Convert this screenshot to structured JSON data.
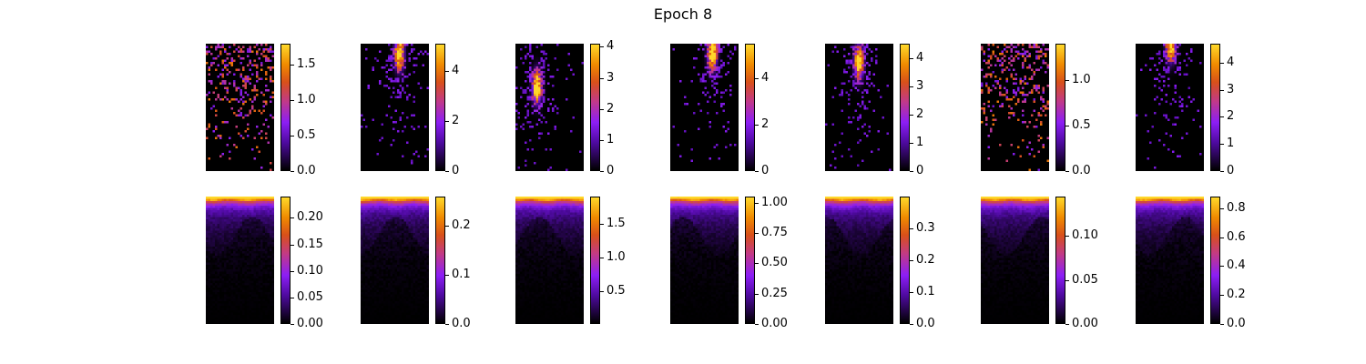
{
  "title": "Epoch 8",
  "colormap": "gnuplot",
  "chart_data": [
    {
      "type": "heatmap",
      "row": 1,
      "col": 1,
      "colorbar_ticks": [
        "0.0",
        "0.5",
        "1.0",
        "1.5"
      ],
      "tick_values": [
        0,
        0.5,
        1.0,
        1.5
      ],
      "vmin": 0,
      "vmax": 1.8,
      "pattern": "sparse-top"
    },
    {
      "type": "heatmap",
      "row": 1,
      "col": 2,
      "colorbar_ticks": [
        "0",
        "2",
        "4"
      ],
      "tick_values": [
        0,
        2,
        4
      ],
      "vmin": 0,
      "vmax": 5.1,
      "pattern": "blob",
      "peak_at": [
        0.55,
        0.07
      ]
    },
    {
      "type": "heatmap",
      "row": 1,
      "col": 3,
      "colorbar_ticks": [
        "0",
        "1",
        "2",
        "3",
        "4"
      ],
      "tick_values": [
        0,
        1,
        2,
        3,
        4
      ],
      "vmin": 0,
      "vmax": 4.1,
      "pattern": "blob",
      "peak_at": [
        0.3,
        0.33
      ]
    },
    {
      "type": "heatmap",
      "row": 1,
      "col": 4,
      "colorbar_ticks": [
        "0",
        "2",
        "4"
      ],
      "tick_values": [
        0,
        2,
        4
      ],
      "vmin": 0,
      "vmax": 5.5,
      "pattern": "blob",
      "peak_at": [
        0.6,
        0.07
      ]
    },
    {
      "type": "heatmap",
      "row": 1,
      "col": 5,
      "colorbar_ticks": [
        "0",
        "1",
        "2",
        "3",
        "4"
      ],
      "tick_values": [
        0,
        1,
        2,
        3,
        4
      ],
      "vmin": 0,
      "vmax": 4.5,
      "pattern": "blob",
      "peak_at": [
        0.48,
        0.14
      ]
    },
    {
      "type": "heatmap",
      "row": 1,
      "col": 6,
      "colorbar_ticks": [
        "0.0",
        "0.5",
        "1.0"
      ],
      "tick_values": [
        0,
        0.5,
        1.0
      ],
      "vmin": 0,
      "vmax": 1.4,
      "pattern": "sparse-top"
    },
    {
      "type": "heatmap",
      "row": 1,
      "col": 7,
      "colorbar_ticks": [
        "0",
        "1",
        "2",
        "3",
        "4"
      ],
      "tick_values": [
        0,
        1,
        2,
        3,
        4
      ],
      "vmin": 0,
      "vmax": 4.7,
      "pattern": "blob",
      "peak_at": [
        0.5,
        0.0
      ]
    },
    {
      "type": "heatmap",
      "row": 2,
      "col": 1,
      "colorbar_ticks": [
        "0.00",
        "0.05",
        "0.10",
        "0.15",
        "0.20"
      ],
      "tick_values": [
        0,
        0.05,
        0.1,
        0.15,
        0.2
      ],
      "vmin": 0,
      "vmax": 0.24,
      "pattern": "top-band"
    },
    {
      "type": "heatmap",
      "row": 2,
      "col": 2,
      "colorbar_ticks": [
        "0.0",
        "0.1",
        "0.2"
      ],
      "tick_values": [
        0,
        0.1,
        0.2
      ],
      "vmin": 0,
      "vmax": 0.26,
      "pattern": "top-band"
    },
    {
      "type": "heatmap",
      "row": 2,
      "col": 3,
      "colorbar_ticks": [
        "0.5",
        "1.0",
        "1.5"
      ],
      "tick_values": [
        0.5,
        1.0,
        1.5
      ],
      "vmin": 0.02,
      "vmax": 1.9,
      "pattern": "top-band"
    },
    {
      "type": "heatmap",
      "row": 2,
      "col": 4,
      "colorbar_ticks": [
        "0.00",
        "0.25",
        "0.50",
        "0.75",
        "1.00"
      ],
      "tick_values": [
        0,
        0.25,
        0.5,
        0.75,
        1.0
      ],
      "vmin": 0,
      "vmax": 1.05,
      "pattern": "top-band"
    },
    {
      "type": "heatmap",
      "row": 2,
      "col": 5,
      "colorbar_ticks": [
        "0.0",
        "0.1",
        "0.2",
        "0.3"
      ],
      "tick_values": [
        0,
        0.1,
        0.2,
        0.3
      ],
      "vmin": 0,
      "vmax": 0.4,
      "pattern": "top-band"
    },
    {
      "type": "heatmap",
      "row": 2,
      "col": 6,
      "colorbar_ticks": [
        "0.00",
        "0.05",
        "0.10"
      ],
      "tick_values": [
        0,
        0.05,
        0.1
      ],
      "vmin": 0,
      "vmax": 0.145,
      "pattern": "top-band"
    },
    {
      "type": "heatmap",
      "row": 2,
      "col": 7,
      "colorbar_ticks": [
        "0.0",
        "0.2",
        "0.4",
        "0.6",
        "0.8"
      ],
      "tick_values": [
        0,
        0.2,
        0.4,
        0.6,
        0.8
      ],
      "vmin": 0,
      "vmax": 0.88,
      "pattern": "top-band"
    }
  ]
}
